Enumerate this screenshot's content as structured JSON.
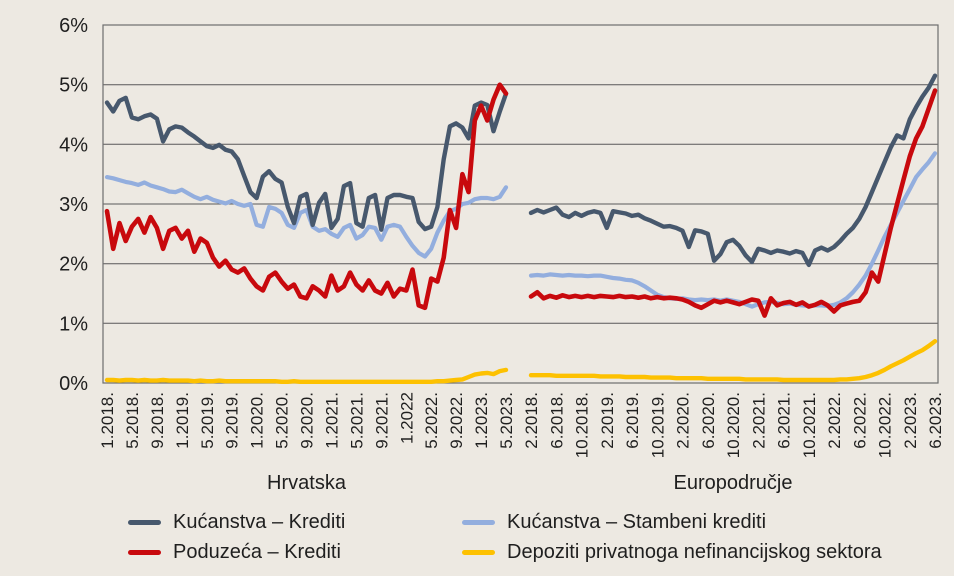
{
  "page": {
    "background": "#EDE9E2"
  },
  "chart_data": {
    "type": "line",
    "title": "",
    "ylabel": "",
    "ylim": [
      0,
      6
    ],
    "ytick_labels": [
      "6%",
      "5%",
      "4%",
      "3%",
      "2%",
      "1%",
      "0%"
    ],
    "grid": "horizontal",
    "legend_position": "bottom",
    "series_meta": [
      {
        "key": "kucanstva_krediti",
        "label": "Kućanstva – Krediti",
        "color": "#47586D"
      },
      {
        "key": "kucanstva_stambeni",
        "label": "Kućanstva – Stambeni krediti",
        "color": "#93AEDE"
      },
      {
        "key": "poduzeca_krediti",
        "label": "Poduzeća – Krediti",
        "color": "#C8090D"
      },
      {
        "key": "depoziti",
        "label": "Depoziti privatnoga nefinancijskog sektora",
        "color": "#FDC101"
      }
    ],
    "panels": [
      {
        "name": "Hrvatska",
        "tick_labels": [
          "1.2018.",
          "5.2018.",
          "9.2018.",
          "1.2019.",
          "5.2019.",
          "9.2019.",
          "1.2020.",
          "5.2020.",
          "9.2020.",
          "1.2021.",
          "5.2021.",
          "9.2021.",
          "1.2022",
          "5.2022.",
          "9.2022.",
          "1.2023.",
          "5.2023."
        ],
        "tick_every": 4,
        "series": {
          "kucanstva_krediti": [
            4.7,
            4.55,
            4.73,
            4.78,
            4.45,
            4.42,
            4.47,
            4.5,
            4.43,
            4.05,
            4.25,
            4.3,
            4.28,
            4.2,
            4.13,
            4.05,
            3.97,
            3.94,
            3.99,
            3.91,
            3.88,
            3.75,
            3.47,
            3.2,
            3.1,
            3.46,
            3.55,
            3.42,
            3.36,
            2.95,
            2.68,
            3.12,
            3.17,
            2.65,
            3.02,
            3.17,
            2.6,
            2.75,
            3.3,
            3.35,
            2.68,
            2.62,
            3.1,
            3.15,
            2.57,
            3.1,
            3.15,
            3.15,
            3.12,
            3.1,
            2.7,
            2.58,
            2.62,
            2.95,
            3.75,
            4.3,
            4.35,
            4.28,
            4.1,
            4.65,
            4.7,
            4.66,
            4.22,
            4.55,
            4.85
          ],
          "kucanstva_stambeni": [
            3.45,
            3.43,
            3.4,
            3.37,
            3.35,
            3.32,
            3.36,
            3.31,
            3.28,
            3.25,
            3.21,
            3.2,
            3.24,
            3.18,
            3.12,
            3.08,
            3.12,
            3.07,
            3.04,
            3.01,
            3.05,
            3.0,
            2.97,
            3.0,
            2.65,
            2.62,
            2.95,
            2.92,
            2.85,
            2.65,
            2.6,
            2.85,
            2.9,
            2.62,
            2.55,
            2.58,
            2.5,
            2.45,
            2.6,
            2.65,
            2.42,
            2.48,
            2.62,
            2.6,
            2.4,
            2.62,
            2.65,
            2.62,
            2.45,
            2.3,
            2.18,
            2.12,
            2.25,
            2.52,
            2.72,
            2.88,
            2.92,
            3.0,
            3.02,
            3.08,
            3.1,
            3.1,
            3.08,
            3.12,
            3.28
          ],
          "poduzeca_krediti": [
            2.88,
            2.25,
            2.68,
            2.38,
            2.62,
            2.75,
            2.52,
            2.78,
            2.6,
            2.25,
            2.55,
            2.6,
            2.42,
            2.55,
            2.2,
            2.42,
            2.35,
            2.1,
            1.95,
            2.05,
            1.9,
            1.85,
            1.92,
            1.75,
            1.62,
            1.55,
            1.78,
            1.85,
            1.7,
            1.58,
            1.65,
            1.45,
            1.42,
            1.62,
            1.55,
            1.45,
            1.8,
            1.55,
            1.62,
            1.85,
            1.65,
            1.55,
            1.72,
            1.55,
            1.5,
            1.68,
            1.45,
            1.58,
            1.55,
            1.9,
            1.3,
            1.26,
            1.75,
            1.7,
            2.1,
            2.9,
            2.6,
            3.5,
            3.2,
            4.4,
            4.65,
            4.4,
            4.75,
            5.0,
            4.85
          ],
          "depoziti": [
            0.05,
            0.05,
            0.04,
            0.05,
            0.05,
            0.04,
            0.05,
            0.04,
            0.04,
            0.05,
            0.04,
            0.04,
            0.04,
            0.04,
            0.03,
            0.04,
            0.03,
            0.03,
            0.04,
            0.03,
            0.03,
            0.03,
            0.03,
            0.03,
            0.03,
            0.03,
            0.03,
            0.03,
            0.02,
            0.02,
            0.03,
            0.02,
            0.02,
            0.02,
            0.02,
            0.02,
            0.02,
            0.02,
            0.02,
            0.02,
            0.02,
            0.02,
            0.02,
            0.02,
            0.02,
            0.02,
            0.02,
            0.02,
            0.02,
            0.02,
            0.02,
            0.02,
            0.02,
            0.03,
            0.03,
            0.04,
            0.05,
            0.06,
            0.1,
            0.14,
            0.16,
            0.17,
            0.15,
            0.2,
            0.22
          ]
        }
      },
      {
        "name": "Europodručje",
        "tick_labels": [
          "2.2018.",
          "6.2018.",
          "10.2018.",
          "2.2019.",
          "6.2019.",
          "10.2019.",
          "2.2020.",
          "6.2020.",
          "10.2020.",
          "2.2021.",
          "6.2021.",
          "10.2021.",
          "2.2022.",
          "6.2022.",
          "10.2022.",
          "2.2023.",
          "6.2023."
        ],
        "tick_every": 4,
        "series": {
          "kucanstva_krediti": [
            2.85,
            2.9,
            2.86,
            2.9,
            2.94,
            2.82,
            2.78,
            2.85,
            2.8,
            2.85,
            2.88,
            2.85,
            2.6,
            2.88,
            2.86,
            2.84,
            2.8,
            2.82,
            2.76,
            2.72,
            2.67,
            2.62,
            2.63,
            2.6,
            2.55,
            2.28,
            2.56,
            2.54,
            2.5,
            2.05,
            2.16,
            2.36,
            2.4,
            2.3,
            2.14,
            2.03,
            2.25,
            2.22,
            2.18,
            2.22,
            2.2,
            2.17,
            2.21,
            2.18,
            1.98,
            2.22,
            2.27,
            2.22,
            2.28,
            2.38,
            2.5,
            2.6,
            2.75,
            2.95,
            3.2,
            3.45,
            3.7,
            3.95,
            4.15,
            4.1,
            4.42,
            4.62,
            4.8,
            4.95,
            5.15
          ],
          "kucanstva_stambeni": [
            1.8,
            1.81,
            1.8,
            1.82,
            1.81,
            1.8,
            1.81,
            1.8,
            1.8,
            1.79,
            1.8,
            1.8,
            1.78,
            1.76,
            1.75,
            1.73,
            1.72,
            1.68,
            1.62,
            1.55,
            1.48,
            1.44,
            1.42,
            1.41,
            1.42,
            1.4,
            1.39,
            1.4,
            1.39,
            1.4,
            1.38,
            1.4,
            1.38,
            1.36,
            1.32,
            1.28,
            1.32,
            1.35,
            1.36,
            1.34,
            1.32,
            1.33,
            1.31,
            1.3,
            1.29,
            1.3,
            1.3,
            1.29,
            1.31,
            1.35,
            1.42,
            1.52,
            1.65,
            1.8,
            2.0,
            2.22,
            2.45,
            2.65,
            2.85,
            3.05,
            3.25,
            3.45,
            3.58,
            3.7,
            3.85
          ],
          "poduzeca_krediti": [
            1.45,
            1.52,
            1.42,
            1.46,
            1.43,
            1.47,
            1.44,
            1.46,
            1.44,
            1.46,
            1.44,
            1.46,
            1.45,
            1.44,
            1.46,
            1.44,
            1.45,
            1.43,
            1.45,
            1.42,
            1.44,
            1.42,
            1.43,
            1.42,
            1.4,
            1.36,
            1.3,
            1.26,
            1.32,
            1.38,
            1.35,
            1.38,
            1.35,
            1.32,
            1.36,
            1.4,
            1.38,
            1.13,
            1.42,
            1.3,
            1.34,
            1.36,
            1.31,
            1.35,
            1.28,
            1.31,
            1.36,
            1.3,
            1.2,
            1.3,
            1.33,
            1.36,
            1.38,
            1.52,
            1.85,
            1.7,
            2.15,
            2.6,
            3.0,
            3.4,
            3.8,
            4.1,
            4.3,
            4.6,
            4.9
          ],
          "depoziti": [
            0.13,
            0.13,
            0.13,
            0.13,
            0.12,
            0.12,
            0.12,
            0.12,
            0.12,
            0.12,
            0.12,
            0.11,
            0.11,
            0.11,
            0.11,
            0.1,
            0.1,
            0.1,
            0.1,
            0.09,
            0.09,
            0.09,
            0.09,
            0.08,
            0.08,
            0.08,
            0.08,
            0.08,
            0.07,
            0.07,
            0.07,
            0.07,
            0.07,
            0.07,
            0.06,
            0.06,
            0.06,
            0.06,
            0.06,
            0.06,
            0.05,
            0.05,
            0.05,
            0.05,
            0.05,
            0.05,
            0.05,
            0.05,
            0.05,
            0.06,
            0.06,
            0.07,
            0.08,
            0.1,
            0.13,
            0.17,
            0.22,
            0.28,
            0.33,
            0.38,
            0.44,
            0.5,
            0.55,
            0.62,
            0.7
          ]
        }
      }
    ]
  }
}
